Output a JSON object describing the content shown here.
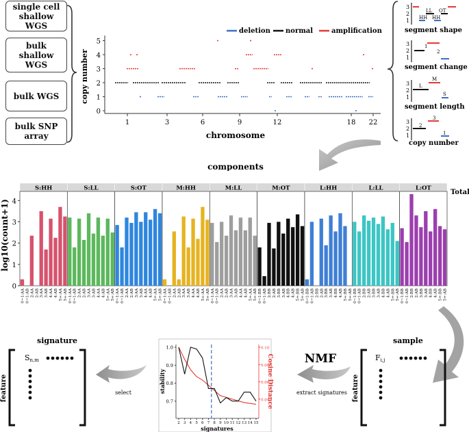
{
  "data_types": [
    "single cell\nshallow\nWGS",
    "bulk\nshallow\nWGS",
    "bulk WGS",
    "bulk SNP\narray"
  ],
  "cn_plot": {
    "ylabel": "copy number",
    "xlabel": "chromosome",
    "yticks": [
      "0",
      "1",
      "2",
      "3",
      "4",
      "5"
    ],
    "xticks": [
      "1",
      "3",
      "6",
      "9",
      "12",
      "18",
      "22"
    ],
    "legend": {
      "deletion": "deletion",
      "normal": "normal",
      "amplification": "amplification"
    },
    "colors": {
      "deletion": "#3c6fc4",
      "normal": "#111111",
      "amplification": "#e53935"
    }
  },
  "features": [
    {
      "caption": "segment shape",
      "labels": [
        "3",
        "2",
        "1",
        "HH",
        "LL",
        "OT",
        "HH"
      ]
    },
    {
      "caption": "segment change",
      "labels": [
        "3",
        "2",
        "1",
        "1",
        "2"
      ]
    },
    {
      "caption": "segment length",
      "labels": [
        "3",
        "2",
        "1",
        "L",
        "M",
        "S"
      ]
    },
    {
      "caption": "copy number",
      "labels": [
        "3",
        "2",
        "1",
        "2",
        "3",
        "1"
      ]
    }
  ],
  "components_title": "components",
  "chart_data": {
    "type": "bar",
    "ylabel": "log10(count+1)",
    "right_label": "Total",
    "ylim": [
      0,
      4.3
    ],
    "yticks": [
      "0",
      "1",
      "2",
      "3",
      "4"
    ],
    "panels": [
      {
        "title": "S:HH",
        "color": "#d6536d",
        "categories": [
          "0~1:AA",
          "0~1:AB",
          "2:AA",
          "2:AB",
          "3:AA",
          "3:AB",
          "4:AA",
          "4:AB",
          "5+:AA",
          "5+:AB"
        ],
        "values": [
          0.3,
          0,
          2.35,
          0,
          3.5,
          1.7,
          3.15,
          2.25,
          3.7,
          3.25
        ]
      },
      {
        "title": "S:LL",
        "color": "#5cb85c",
        "categories": [
          "0~1:AA",
          "0~1:AB",
          "2:AA",
          "2:AB",
          "3:AA",
          "3:AB",
          "4:AA",
          "4:AB",
          "5+:AA",
          "5+:AB"
        ],
        "values": [
          3.2,
          1.8,
          3.15,
          2.15,
          3.4,
          2.45,
          3.2,
          2.35,
          3.15,
          2.5
        ]
      },
      {
        "title": "S:OT",
        "color": "#2e86de",
        "categories": [
          "0~1:AA",
          "0~1:AB",
          "2:AA",
          "2:AB",
          "3:AA",
          "3:AB",
          "4:AA",
          "4:AB",
          "5+:AA",
          "5+:AB"
        ],
        "values": [
          2.85,
          1.8,
          3.2,
          2.95,
          3.45,
          3.0,
          3.45,
          3.1,
          3.6,
          3.4
        ]
      },
      {
        "title": "M:HH",
        "color": "#e6b422",
        "categories": [
          "0~1:AA",
          "0~1:AB",
          "2:AA",
          "2:AB",
          "3:AA",
          "3:AB",
          "4:AA",
          "4:AB",
          "5+:AA",
          "5+:AB"
        ],
        "values": [
          0.3,
          0,
          2.55,
          0.3,
          3.25,
          1.8,
          3.15,
          2.2,
          3.7,
          3.1
        ]
      },
      {
        "title": "M:LL",
        "color": "#9e9e9e",
        "categories": [
          "0~1:AA",
          "0~1:AB",
          "2:AA",
          "2:AB",
          "3:AA",
          "3:AB",
          "4:AA",
          "4:AB",
          "5+:AA",
          "5+:AB"
        ],
        "values": [
          2.95,
          2.05,
          3.0,
          2.35,
          3.3,
          2.6,
          3.2,
          2.6,
          3.2,
          2.35
        ]
      },
      {
        "title": "M:OT",
        "color": "#111111",
        "categories": [
          "0~1:BB",
          "0~1:AB",
          "2:BB",
          "2:AB",
          "3:BB",
          "3:AB",
          "4:BB",
          "4:AB",
          "5+:BB",
          "5+:AB"
        ],
        "values": [
          1.8,
          0.45,
          2.95,
          1.75,
          3.0,
          2.45,
          3.15,
          2.75,
          3.35,
          2.8
        ]
      },
      {
        "title": "L:HH",
        "color": "#3f7fd6",
        "categories": [
          "0~1:BB",
          "0~1:AB",
          "2:BB",
          "2:AB",
          "3:BB",
          "3:AB",
          "4:BB",
          "4:AB",
          "5+:BB",
          "5+:AB"
        ],
        "values": [
          0.3,
          3.0,
          0,
          3.15,
          1.9,
          3.3,
          2.55,
          3.4,
          2.8,
          0
        ]
      },
      {
        "title": "L:LL",
        "color": "#3cc5c5",
        "categories": [
          "0~1:BB",
          "0~1:AB",
          "2:BB",
          "2:AB",
          "3:BB",
          "3:AB",
          "4:BB",
          "4:AB",
          "5+:BB",
          "5+:AB"
        ],
        "values": [
          3.0,
          2.55,
          3.3,
          3.05,
          3.2,
          2.9,
          3.25,
          2.65,
          2.95,
          2.1
        ]
      },
      {
        "title": "L:OT",
        "color": "#9b3fae",
        "categories": [
          "0~1:BB",
          "0~1:AB",
          "2:BB",
          "2:AB",
          "3:BB",
          "3:AB",
          "4:BB",
          "4:AB",
          "5+:BB",
          "5+:AB"
        ],
        "values": [
          2.7,
          2.05,
          4.3,
          3.3,
          2.75,
          3.5,
          2.55,
          3.6,
          2.8,
          2.65
        ]
      }
    ]
  },
  "signature_matrix": {
    "title": "signature",
    "side": "feature",
    "element": "S",
    "subscript": "n,m"
  },
  "sample_matrix": {
    "title": "sample",
    "side": "feature",
    "element": "F",
    "subscript": "i,j"
  },
  "arrows": {
    "select": "select",
    "nmf": "NMF",
    "extract": "extract signatures"
  },
  "stability_plot": {
    "xlabel": "signatures",
    "ylabel": "stability",
    "y2label": "Cosine Distance",
    "x": [
      2,
      3,
      4,
      5,
      6,
      7,
      8,
      9,
      10,
      11,
      12,
      13,
      14,
      15
    ],
    "stability": [
      1.0,
      0.85,
      1.0,
      0.99,
      0.94,
      0.77,
      0.77,
      0.69,
      0.72,
      0.7,
      0.7,
      0.75,
      0.75,
      0.7
    ],
    "cosine": [
      0.1,
      0.086,
      0.074,
      0.066,
      0.062,
      0.056,
      0.05,
      0.044,
      0.042,
      0.04,
      0.038,
      0.036,
      0.035,
      0.034
    ],
    "yticks": [
      "0.7",
      "0.8",
      "0.9",
      "1.0"
    ],
    "y2ticks": [
      "0.04",
      "0.06",
      "0.08",
      "0.10"
    ],
    "xticks": [
      "2",
      "3",
      "4",
      "5",
      "6",
      "7",
      "8",
      "9",
      "10",
      "11",
      "12",
      "13",
      "14",
      "15"
    ],
    "selected": 7.5
  }
}
